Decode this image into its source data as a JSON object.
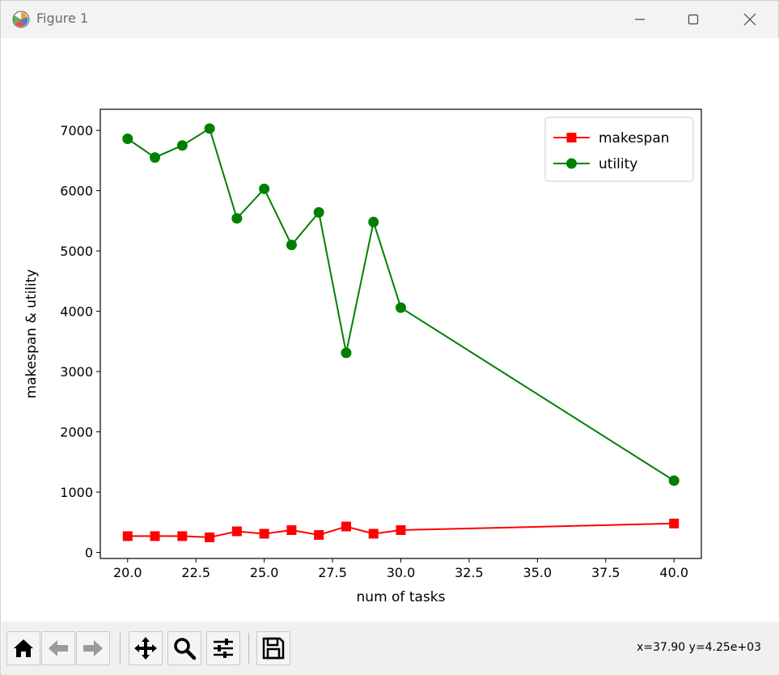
{
  "window": {
    "title": "Figure 1",
    "minimize_icon": "minimize-icon",
    "maximize_icon": "maximize-icon",
    "close_icon": "close-icon"
  },
  "toolbar": {
    "buttons": [
      {
        "name": "home-button",
        "icon": "home-icon"
      },
      {
        "name": "back-button",
        "icon": "back-arrow-icon"
      },
      {
        "name": "forward-button",
        "icon": "forward-arrow-icon"
      },
      {
        "name": "pan-button",
        "icon": "move-icon"
      },
      {
        "name": "zoom-button",
        "icon": "magnifier-icon"
      },
      {
        "name": "configure-subplots-button",
        "icon": "sliders-icon"
      },
      {
        "name": "save-button",
        "icon": "floppy-disk-icon"
      }
    ],
    "coordinates": "x=37.90 y=4.25e+03"
  },
  "chart_data": {
    "type": "line",
    "title": "",
    "xlabel": "num of tasks",
    "ylabel": "makespan & utility",
    "xlim": [
      19.0,
      41.0
    ],
    "ylim": [
      -100,
      7350
    ],
    "xticks": [
      20.0,
      22.5,
      25.0,
      27.5,
      30.0,
      32.5,
      35.0,
      37.5,
      40.0
    ],
    "xtick_labels": [
      "20.0",
      "22.5",
      "25.0",
      "27.5",
      "30.0",
      "32.5",
      "35.0",
      "37.5",
      "40.0"
    ],
    "yticks": [
      0,
      1000,
      2000,
      3000,
      4000,
      5000,
      6000,
      7000
    ],
    "ytick_labels": [
      "0",
      "1000",
      "2000",
      "3000",
      "4000",
      "5000",
      "6000",
      "7000"
    ],
    "grid": false,
    "legend_position": "top-right",
    "x": [
      20,
      21,
      22,
      23,
      24,
      25,
      26,
      27,
      28,
      29,
      30,
      40
    ],
    "series": [
      {
        "name": "makespan",
        "color": "#ff0000",
        "marker": "square",
        "values": [
          270,
          270,
          270,
          250,
          350,
          310,
          370,
          290,
          430,
          310,
          370,
          480
        ]
      },
      {
        "name": "utility",
        "color": "#008000",
        "marker": "circle",
        "values": [
          6860,
          6550,
          6750,
          7030,
          5540,
          6030,
          5100,
          5640,
          3310,
          5480,
          4060,
          1190
        ]
      }
    ]
  }
}
